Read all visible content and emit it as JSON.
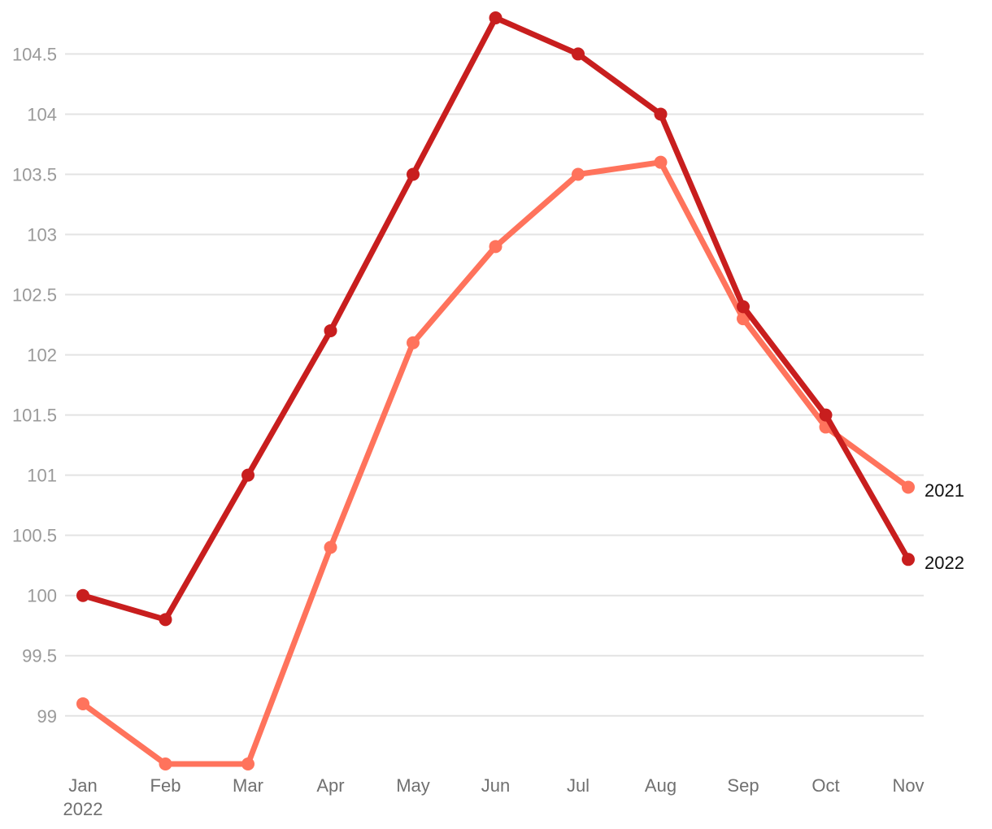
{
  "chart_data": {
    "type": "line",
    "categories": [
      "Jan",
      "Feb",
      "Mar",
      "Apr",
      "May",
      "Jun",
      "Jul",
      "Aug",
      "Sep",
      "Oct",
      "Nov"
    ],
    "x_sublabel": "2022",
    "ylim": [
      98.6,
      104.8
    ],
    "yticks": [
      99,
      99.5,
      100,
      100.5,
      101,
      101.5,
      102,
      102.5,
      103,
      103.5,
      104,
      104.5
    ],
    "ytick_labels": [
      "99",
      "99.5",
      "100",
      "100.5",
      "101",
      "101.5",
      "102",
      "102.5",
      "103",
      "103.5",
      "104",
      "104.5"
    ],
    "grid": true,
    "series": [
      {
        "name": "2021",
        "color": "#ff735c",
        "values": [
          99.1,
          98.6,
          98.6,
          100.4,
          102.1,
          102.9,
          103.5,
          103.6,
          102.3,
          101.4,
          100.9
        ]
      },
      {
        "name": "2022",
        "color": "#c81e1e",
        "values": [
          100.0,
          99.8,
          101.0,
          102.2,
          103.5,
          104.8,
          104.5,
          104.0,
          102.4,
          101.5,
          100.3
        ]
      }
    ]
  }
}
